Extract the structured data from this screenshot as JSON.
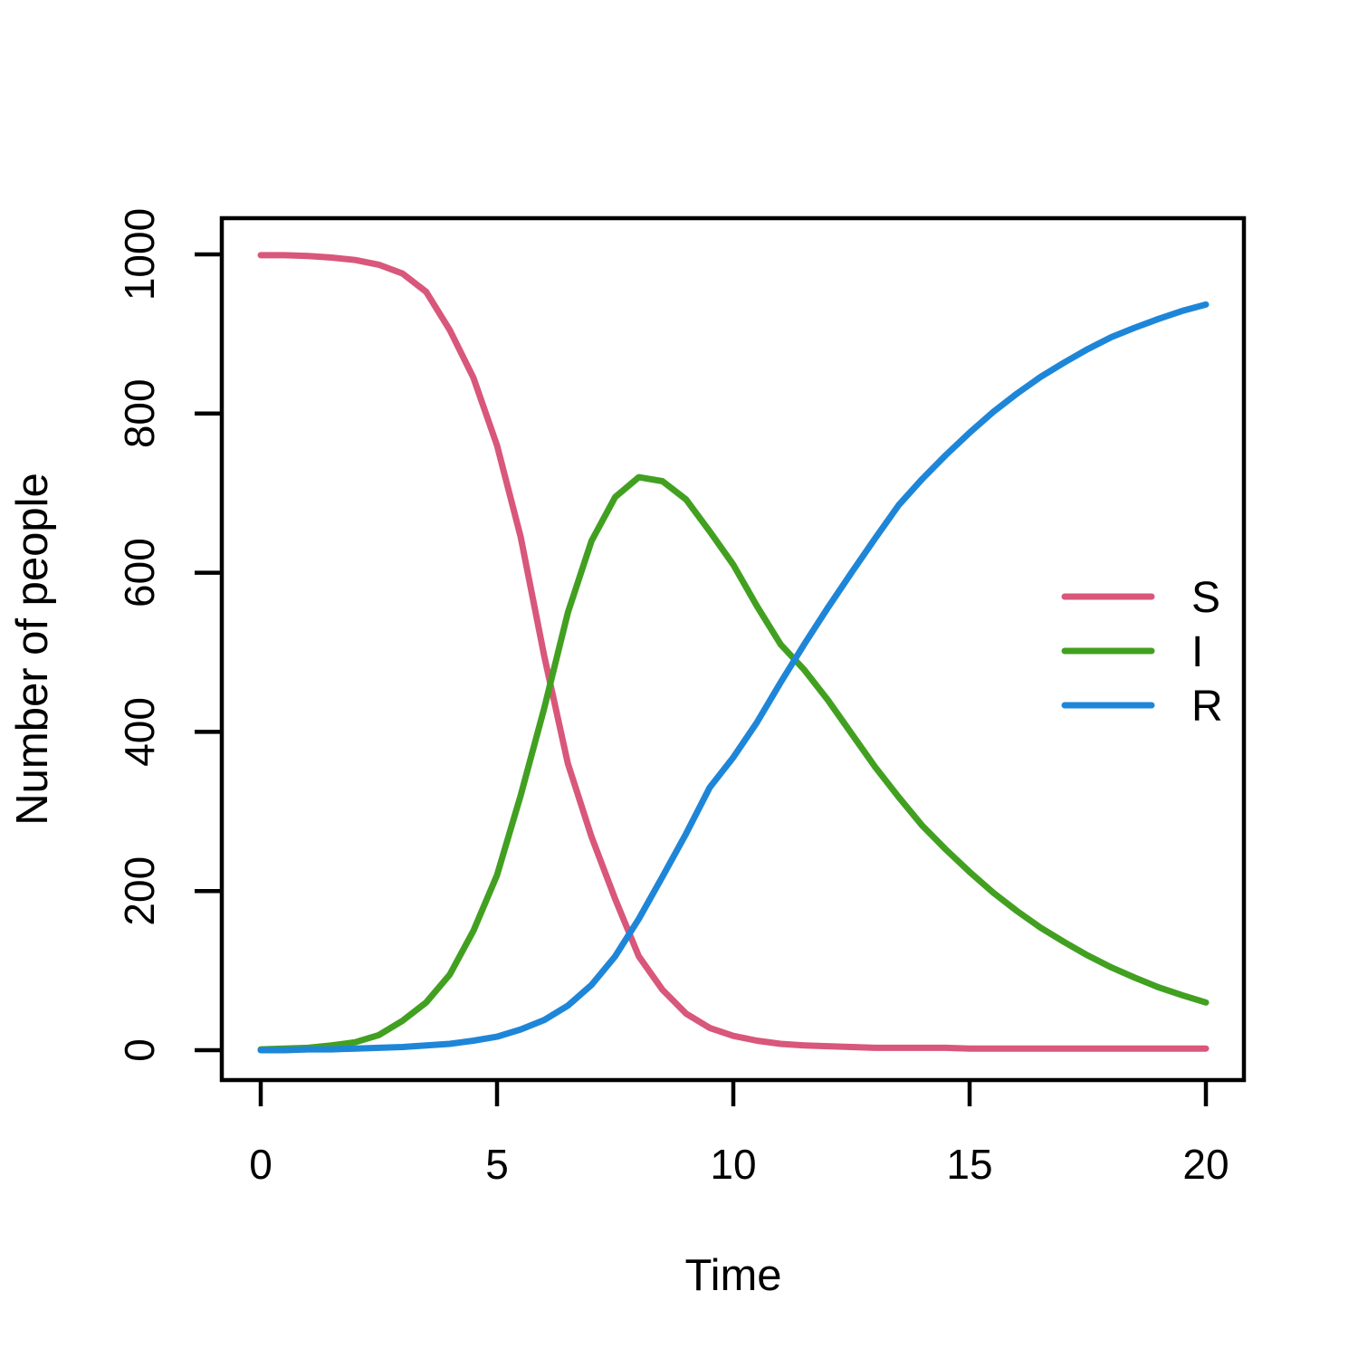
{
  "chart_data": {
    "type": "line",
    "title": "",
    "xlabel": "Time",
    "ylabel": "Number of people",
    "xlim": [
      0,
      20
    ],
    "ylim": [
      0,
      1000
    ],
    "x_ticks": [
      0,
      5,
      10,
      15,
      20
    ],
    "y_ticks": [
      0,
      200,
      400,
      600,
      800,
      1000
    ],
    "grid": false,
    "legend_position": "right",
    "x": [
      0,
      0.5,
      1,
      1.5,
      2,
      2.5,
      3,
      3.5,
      4,
      4.5,
      5,
      5.5,
      6,
      6.5,
      7,
      7.5,
      8,
      8.5,
      9,
      9.5,
      10,
      10.5,
      11,
      11.5,
      12,
      12.5,
      13,
      13.5,
      14,
      14.5,
      15,
      15.5,
      16,
      16.5,
      17,
      17.5,
      18,
      18.5,
      19,
      19.5,
      20
    ],
    "series": [
      {
        "name": "S",
        "color": "#D8577A",
        "values": [
          999,
          999,
          998,
          996,
          993,
          987,
          976,
          953,
          905,
          845,
          760,
          645,
          495,
          360,
          268,
          190,
          118,
          76,
          46,
          28,
          18,
          12,
          8,
          6,
          5,
          4,
          3,
          3,
          3,
          3,
          2,
          2,
          2,
          2,
          2,
          2,
          2,
          2,
          2,
          2,
          2
        ]
      },
      {
        "name": "I",
        "color": "#42A021",
        "values": [
          1,
          2,
          3,
          6,
          10,
          19,
          37,
          60,
          95,
          150,
          220,
          320,
          430,
          550,
          640,
          695,
          720,
          715,
          692,
          652,
          610,
          558,
          510,
          478,
          440,
          398,
          356,
          318,
          282,
          252,
          224,
          198,
          175,
          154,
          136,
          119,
          104,
          91,
          79,
          69,
          60
        ]
      },
      {
        "name": "R",
        "color": "#1E86D8",
        "values": [
          0,
          0,
          1,
          1,
          2,
          3,
          4,
          6,
          8,
          12,
          17,
          26,
          38,
          56,
          82,
          118,
          165,
          218,
          272,
          330,
          368,
          412,
          462,
          510,
          556,
          600,
          643,
          685,
          718,
          748,
          776,
          802,
          825,
          846,
          864,
          881,
          896,
          908,
          919,
          929,
          937
        ]
      }
    ],
    "colors": {
      "axis": "#000000",
      "background": "#ffffff"
    }
  }
}
